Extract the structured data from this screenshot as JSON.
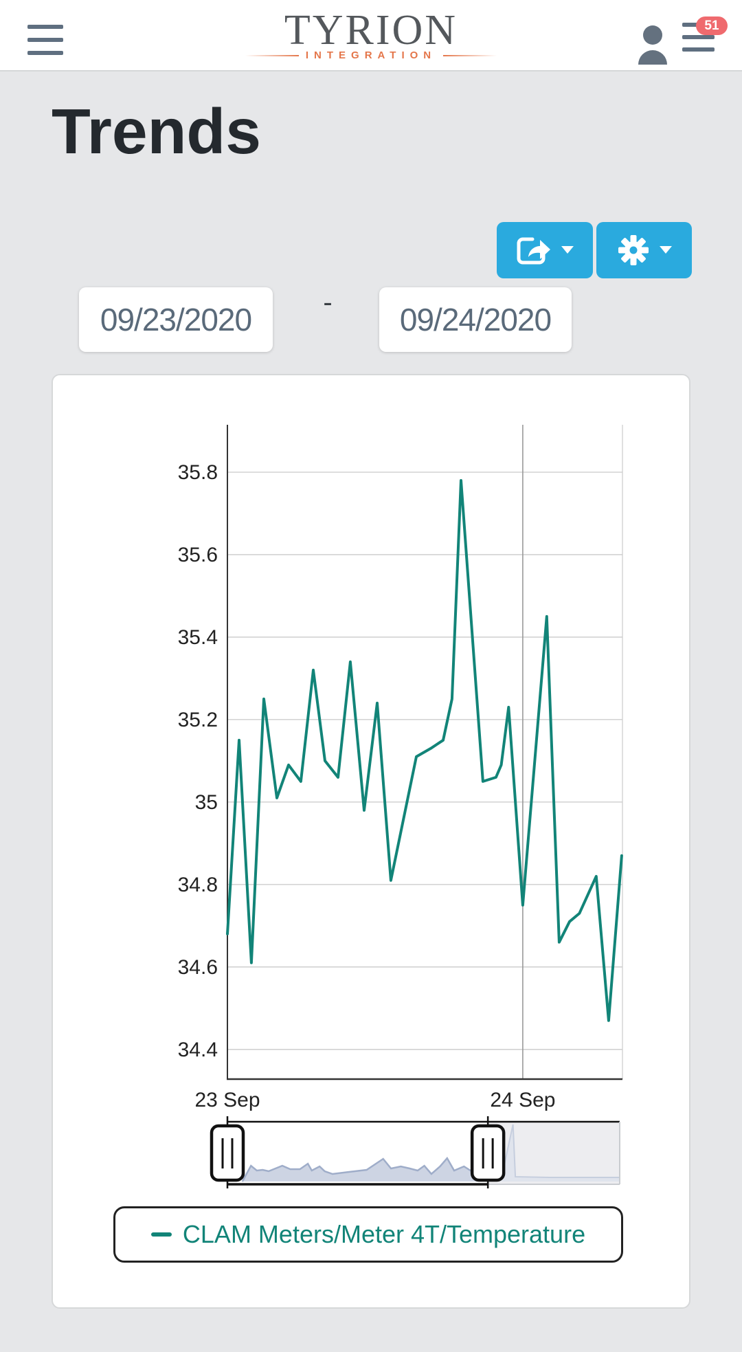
{
  "header": {
    "logo_primary": "TYRION",
    "logo_secondary": "INTEGRATION",
    "notification_badge": "51"
  },
  "page": {
    "title": "Trends"
  },
  "date_range": {
    "start": "09/23/2020",
    "separator": "-",
    "end": "09/24/2020"
  },
  "colors": {
    "accent_button": "#2aaade",
    "series_teal": "#128478",
    "badge_red": "#ef6a6e",
    "logo_orange": "#e4764a"
  },
  "chart_data": {
    "type": "line",
    "title": "",
    "xlabel": "",
    "ylabel": "",
    "grid": true,
    "legend_position": "bottom",
    "ylim": [
      34.328,
      35.915
    ],
    "xlim_hours": [
      0,
      32.1
    ],
    "y_ticks": [
      {
        "value": 35.8,
        "label": "35.8"
      },
      {
        "value": 35.6,
        "label": "35.6"
      },
      {
        "value": 35.4,
        "label": "35.4"
      },
      {
        "value": 35.2,
        "label": "35.2"
      },
      {
        "value": 35.0,
        "label": "35"
      },
      {
        "value": 34.8,
        "label": "34.8"
      },
      {
        "value": 34.6,
        "label": "34.6"
      },
      {
        "value": 34.4,
        "label": "34.4"
      }
    ],
    "x_ticks": [
      {
        "hour": 0,
        "label": "23 Sep"
      },
      {
        "hour": 24,
        "label": "24 Sep"
      }
    ],
    "series": [
      {
        "name": "CLAM Meters/Meter 4T/Temperature",
        "color": "#128478",
        "points": [
          [
            0.0,
            34.68
          ],
          [
            0.95,
            35.15
          ],
          [
            1.95,
            34.61
          ],
          [
            2.96,
            35.25
          ],
          [
            4.02,
            35.01
          ],
          [
            4.97,
            35.09
          ],
          [
            5.97,
            35.05
          ],
          [
            6.98,
            35.32
          ],
          [
            7.93,
            35.1
          ],
          [
            8.99,
            35.06
          ],
          [
            9.99,
            35.34
          ],
          [
            11.11,
            34.98
          ],
          [
            12.17,
            35.24
          ],
          [
            13.28,
            34.81
          ],
          [
            15.35,
            35.11
          ],
          [
            16.52,
            35.13
          ],
          [
            17.53,
            35.15
          ],
          [
            18.25,
            35.25
          ],
          [
            18.98,
            35.78
          ],
          [
            20.76,
            35.05
          ],
          [
            21.82,
            35.06
          ],
          [
            22.25,
            35.09
          ],
          [
            22.85,
            35.23
          ],
          [
            24.0,
            34.75
          ],
          [
            25.95,
            35.45
          ],
          [
            26.96,
            34.66
          ],
          [
            27.8,
            34.71
          ],
          [
            28.6,
            34.73
          ],
          [
            29.97,
            34.82
          ],
          [
            30.98,
            34.47
          ],
          [
            32.04,
            34.87
          ]
        ]
      }
    ]
  },
  "navigator": {
    "selection": [
      0,
      0.664
    ],
    "points": [
      [
        0.038,
        0
      ],
      [
        0.06,
        23
      ],
      [
        0.075,
        16
      ],
      [
        0.09,
        17
      ],
      [
        0.105,
        15
      ],
      [
        0.14,
        23
      ],
      [
        0.16,
        18
      ],
      [
        0.185,
        18
      ],
      [
        0.205,
        26
      ],
      [
        0.215,
        16
      ],
      [
        0.235,
        22
      ],
      [
        0.248,
        15
      ],
      [
        0.268,
        11
      ],
      [
        0.31,
        14
      ],
      [
        0.355,
        17
      ],
      [
        0.397,
        33
      ],
      [
        0.417,
        19
      ],
      [
        0.442,
        22
      ],
      [
        0.465,
        19
      ],
      [
        0.485,
        16
      ],
      [
        0.502,
        23
      ],
      [
        0.52,
        11
      ],
      [
        0.542,
        22
      ],
      [
        0.56,
        34
      ],
      [
        0.578,
        16
      ],
      [
        0.603,
        22
      ],
      [
        0.628,
        13
      ],
      [
        0.664,
        10
      ],
      [
        0.7,
        9
      ],
      [
        0.728,
        83
      ],
      [
        0.734,
        7
      ],
      [
        0.82,
        6
      ],
      [
        1.0,
        6
      ]
    ]
  }
}
